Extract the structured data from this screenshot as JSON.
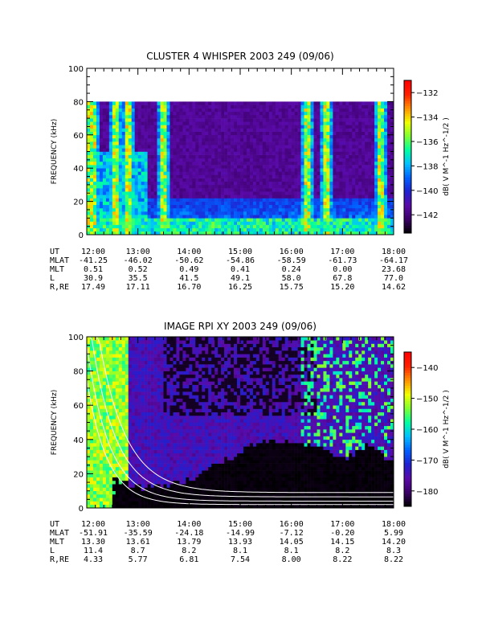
{
  "chart_data": [
    {
      "type": "heatmap",
      "title": "CLUSTER 4 WHISPER 2003 249 (09/06)",
      "ylabel": "FREQUENCY (kHz)",
      "ylim": [
        0,
        100
      ],
      "yticks": [
        0,
        20,
        40,
        60,
        80,
        100
      ],
      "x_ticks": [
        "12:00",
        "13:00",
        "14:00",
        "15:00",
        "16:00",
        "17:00",
        "18:00"
      ],
      "data_top_khz": 80,
      "colorbar": {
        "label": "dB( V M^-1 Hz^-1/2 )",
        "ticks": [
          -132,
          -134,
          -136,
          -138,
          -140,
          -142
        ],
        "range": [
          -143.5,
          -131
        ],
        "colors": [
          "#000000",
          "#3a0066",
          "#5a0aa8",
          "#2020d0",
          "#0060ff",
          "#00c0ff",
          "#00ffa0",
          "#80ff30",
          "#f0ff00",
          "#ff9000",
          "#ff2000",
          "#ff0000"
        ]
      },
      "intense_bursts_hours": [
        12.1,
        12.55,
        12.8,
        13.5,
        16.3,
        16.7,
        17.75
      ],
      "ephemeris": {
        "UT": [
          "12:00",
          "13:00",
          "14:00",
          "15:00",
          "16:00",
          "17:00",
          "18:00"
        ],
        "MLAT": [
          "-41.25",
          "-46.02",
          "-50.62",
          "-54.86",
          "-58.59",
          "-61.73",
          "-64.17"
        ],
        "MLT": [
          "0.51",
          "0.52",
          "0.49",
          "0.41",
          "0.24",
          "0.00",
          "23.68"
        ],
        "L": [
          "30.9",
          "35.5",
          "41.5",
          "49.1",
          "58.0",
          "67.8",
          "77.0"
        ],
        "R,RE": [
          "17.49",
          "17.11",
          "16.70",
          "16.25",
          "15.75",
          "15.20",
          "14.62"
        ]
      }
    },
    {
      "type": "heatmap",
      "title": "IMAGE RPI XY 2003 249 (09/06)",
      "ylabel": "FREQUENCY (kHz)",
      "ylim": [
        0,
        100
      ],
      "yticks": [
        0,
        20,
        40,
        60,
        80,
        100
      ],
      "x_ticks": [
        "12:00",
        "13:00",
        "14:00",
        "15:00",
        "16:00",
        "17:00",
        "18:00"
      ],
      "colorbar": {
        "label": "dB( V M^-1 Hz^-1/2 )",
        "ticks": [
          -140,
          -150,
          -160,
          -170,
          -180
        ],
        "range": [
          -185,
          -135
        ],
        "colors": [
          "#000000",
          "#3a0066",
          "#5a0aa8",
          "#2020d0",
          "#0060ff",
          "#00c0ff",
          "#00ffa0",
          "#80ff30",
          "#f0ff00",
          "#ff9000",
          "#ff2000",
          "#ff0000"
        ]
      },
      "plasma_cutoff_khz": {
        "hours": [
          12.0,
          12.5,
          13.0,
          13.5,
          14.0,
          14.5,
          15.0,
          15.5,
          16.0,
          16.5,
          17.0,
          17.5,
          18.0
        ],
        "freq": [
          25,
          15,
          10,
          12,
          14,
          24,
          30,
          38,
          35,
          35,
          25,
          35,
          25
        ]
      },
      "white_traces": [
        {
          "f0": 150,
          "decay": 1.9,
          "floor": 9
        },
        {
          "f0": 120,
          "decay": 2.1,
          "floor": 6.5
        },
        {
          "f0": 95,
          "decay": 2.3,
          "floor": 4
        },
        {
          "f0": 75,
          "decay": 2.5,
          "floor": 2
        }
      ],
      "ephemeris": {
        "UT": [
          "12:00",
          "13:00",
          "14:00",
          "15:00",
          "16:00",
          "17:00",
          "18:00"
        ],
        "MLAT": [
          "-51.91",
          "-35.59",
          "-24.18",
          "-14.99",
          "-7.12",
          "-0.20",
          "5.99"
        ],
        "MLT": [
          "13.30",
          "13.61",
          "13.79",
          "13.93",
          "14.05",
          "14.15",
          "14.20"
        ],
        "L": [
          "11.4",
          "8.7",
          "8.2",
          "8.1",
          "8.1",
          "8.2",
          "8.3"
        ],
        "R,RE": [
          "4.33",
          "5.77",
          "6.81",
          "7.54",
          "8.00",
          "8.22",
          "8.22"
        ]
      }
    }
  ]
}
